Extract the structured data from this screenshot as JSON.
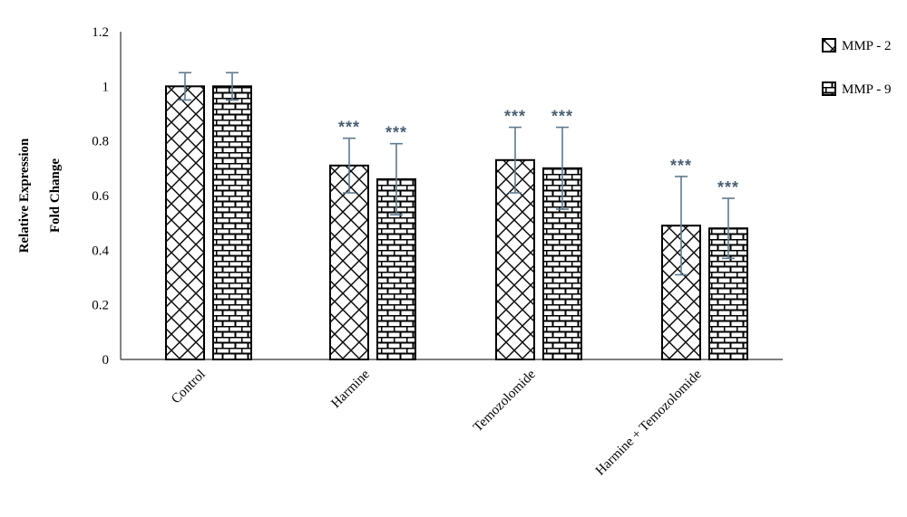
{
  "chart_data": {
    "type": "bar",
    "categories": [
      "Control",
      "Harmine",
      "Temozolomide",
      "Harmine + Temozolomide"
    ],
    "series": [
      {
        "name": "MMP - 2",
        "values": [
          1.0,
          0.71,
          0.73,
          0.49
        ],
        "errors": [
          0.05,
          0.1,
          0.12,
          0.18
        ],
        "significance": [
          "",
          "***",
          "***",
          "***"
        ]
      },
      {
        "name": "MMP - 9",
        "values": [
          1.0,
          0.66,
          0.7,
          0.48
        ],
        "errors": [
          0.05,
          0.13,
          0.15,
          0.11
        ],
        "significance": [
          "",
          "***",
          "***",
          "***"
        ]
      }
    ],
    "title": "",
    "xlabel": "",
    "ylabel_lines": [
      "Relative Expression",
      "Fold Change"
    ],
    "ylim": [
      0,
      1.2
    ],
    "yticks": [
      "0",
      "0.2",
      "0.4",
      "0.6",
      "0.8",
      "1",
      "1.2"
    ],
    "grid": false,
    "legend_position": "top-right",
    "colors": {
      "fill": "#ffffff",
      "pattern": "#000000",
      "error_bar": "#5f7a8e",
      "significance": "#4a5f72"
    }
  }
}
